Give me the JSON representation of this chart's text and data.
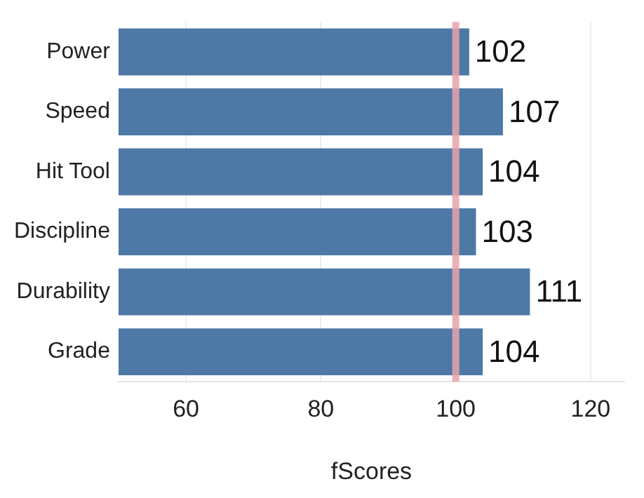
{
  "chart_data": {
    "type": "bar",
    "orientation": "horizontal",
    "xlabel": "fScores",
    "categories": [
      "Power",
      "Speed",
      "Hit Tool",
      "Discipline",
      "Durability",
      "Grade"
    ],
    "values": [
      102,
      107,
      104,
      103,
      111,
      104
    ],
    "color": "#4e79a7",
    "data_labels": true,
    "xlim": [
      50,
      125
    ],
    "xticks": [
      60,
      80,
      100,
      120
    ],
    "grid": "x",
    "ref_lines": [
      {
        "axis": "x",
        "value": 100,
        "color": "#e8a3aa"
      }
    ]
  }
}
